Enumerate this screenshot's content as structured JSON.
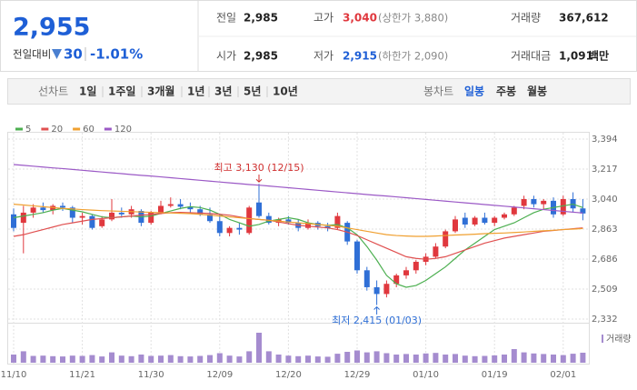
{
  "quote": {
    "price": "2,955",
    "change_label": "전일대비",
    "change": "30",
    "change_pct": "-1.01%",
    "stats": [
      {
        "label": "전일",
        "value": "2,985"
      },
      {
        "label": "고가",
        "value": "3,040",
        "note": "(상한가 3,880)"
      },
      {
        "label": "거래량",
        "value": "367,612"
      },
      {
        "label": "시가",
        "value": "2,985"
      },
      {
        "label": "저가",
        "value": "2,915",
        "note": "(하한가 2,090)"
      },
      {
        "label": "거래대금",
        "value": "1,091",
        "unit": "백만"
      }
    ]
  },
  "toolbar": {
    "line_chart": "선차트",
    "periods": [
      "1일",
      "1주일",
      "3개월",
      "1년",
      "3년",
      "5년",
      "10년"
    ],
    "candle_chart": "봉차트",
    "candle_periods": [
      "일봉",
      "주봉",
      "월봉"
    ]
  },
  "chart_data": {
    "type": "candlestick",
    "up_color": "#e0383e",
    "down_color": "#2f6fd6",
    "categories": [
      "11/10",
      null,
      null,
      null,
      null,
      null,
      null,
      "11/21",
      null,
      null,
      null,
      null,
      null,
      null,
      "11/30",
      null,
      null,
      null,
      null,
      null,
      null,
      "12/09",
      null,
      null,
      null,
      null,
      null,
      null,
      "12/20",
      null,
      null,
      null,
      null,
      null,
      null,
      "12/29",
      null,
      null,
      null,
      null,
      null,
      null,
      "01/10",
      null,
      null,
      null,
      null,
      null,
      null,
      "01/19",
      null,
      null,
      null,
      null,
      null,
      null,
      "02/01",
      null,
      null
    ],
    "open": [
      2950,
      2900,
      2960,
      2990,
      2975,
      3000,
      2990,
      2930,
      2940,
      2880,
      2920,
      2960,
      2950,
      2970,
      2900,
      2960,
      3000,
      3010,
      2995,
      2980,
      2950,
      2910,
      2840,
      2870,
      2840,
      3020,
      2940,
      2900,
      2920,
      2900,
      2870,
      2900,
      2880,
      2870,
      2900,
      2790,
      2620,
      2520,
      2480,
      2540,
      2590,
      2620,
      2670,
      2700,
      2760,
      2850,
      2930,
      2890,
      2930,
      2900,
      2930,
      2950,
      3000,
      3040,
      3010,
      3030,
      2950,
      3040,
      2985
    ],
    "high": [
      2985,
      3000,
      3010,
      3020,
      3010,
      3020,
      3000,
      2960,
      2950,
      2940,
      3040,
      2990,
      3000,
      2980,
      2970,
      3030,
      3050,
      3040,
      3020,
      3000,
      2990,
      2950,
      2880,
      2900,
      3000,
      3130,
      2960,
      2930,
      2940,
      2920,
      2920,
      2910,
      2900,
      2960,
      2910,
      2800,
      2640,
      2560,
      2560,
      2600,
      2640,
      2680,
      2720,
      2780,
      2860,
      2940,
      2960,
      2940,
      2960,
      2940,
      2960,
      3000,
      3060,
      3060,
      3040,
      3050,
      3060,
      3080,
      3040
    ],
    "low": [
      2850,
      2720,
      2930,
      2960,
      2950,
      2970,
      2900,
      2890,
      2860,
      2870,
      2910,
      2930,
      2930,
      2880,
      2890,
      2950,
      2990,
      2980,
      2960,
      2940,
      2900,
      2820,
      2820,
      2830,
      2830,
      2930,
      2890,
      2880,
      2890,
      2850,
      2860,
      2860,
      2850,
      2860,
      2770,
      2600,
      2500,
      2415,
      2460,
      2520,
      2570,
      2600,
      2650,
      2690,
      2750,
      2840,
      2870,
      2880,
      2890,
      2880,
      2920,
      2940,
      2980,
      2990,
      2980,
      2930,
      2940,
      2960,
      2915
    ],
    "close": [
      2870,
      2960,
      2990,
      2975,
      3000,
      2990,
      2930,
      2940,
      2870,
      2920,
      2960,
      2950,
      2980,
      2900,
      2960,
      3000,
      3010,
      2995,
      2980,
      2950,
      2910,
      2840,
      2870,
      2860,
      2990,
      2940,
      2900,
      2920,
      2900,
      2870,
      2900,
      2880,
      2870,
      2940,
      2790,
      2620,
      2520,
      2480,
      2540,
      2590,
      2620,
      2670,
      2700,
      2760,
      2850,
      2920,
      2890,
      2930,
      2900,
      2930,
      2950,
      2990,
      3040,
      3010,
      3030,
      2950,
      3040,
      2985,
      2955
    ],
    "moving_averages": [
      {
        "name": "5",
        "color": "#4caf50",
        "values": [
          2930,
          2940,
          2950,
          2960,
          2975,
          2985,
          2975,
          2965,
          2950,
          2935,
          2930,
          2935,
          2940,
          2935,
          2940,
          2955,
          2970,
          2985,
          2995,
          2990,
          2975,
          2950,
          2920,
          2900,
          2880,
          2890,
          2910,
          2920,
          2930,
          2920,
          2900,
          2890,
          2885,
          2890,
          2870,
          2830,
          2760,
          2680,
          2590,
          2540,
          2520,
          2530,
          2560,
          2600,
          2640,
          2690,
          2740,
          2780,
          2820,
          2860,
          2880,
          2900,
          2930,
          2960,
          2980,
          2990,
          3000,
          3010,
          2990
        ]
      },
      {
        "name": "20",
        "color": "#e05050",
        "values": [
          2820,
          2830,
          2845,
          2860,
          2875,
          2890,
          2900,
          2910,
          2920,
          2925,
          2930,
          2935,
          2940,
          2945,
          2950,
          2955,
          2960,
          2962,
          2960,
          2958,
          2955,
          2950,
          2945,
          2935,
          2925,
          2920,
          2915,
          2905,
          2895,
          2885,
          2880,
          2875,
          2870,
          2860,
          2845,
          2825,
          2800,
          2775,
          2750,
          2725,
          2700,
          2690,
          2685,
          2690,
          2700,
          2720,
          2740,
          2760,
          2780,
          2795,
          2810,
          2820,
          2830,
          2840,
          2850,
          2855,
          2860,
          2865,
          2870
        ]
      },
      {
        "name": "60",
        "color": "#f0a030",
        "values": [
          3010,
          3005,
          3000,
          2995,
          2990,
          2985,
          2982,
          2978,
          2975,
          2972,
          2970,
          2968,
          2966,
          2964,
          2962,
          2960,
          2958,
          2956,
          2954,
          2950,
          2945,
          2940,
          2935,
          2930,
          2925,
          2920,
          2915,
          2910,
          2905,
          2900,
          2895,
          2890,
          2885,
          2880,
          2870,
          2860,
          2850,
          2840,
          2830,
          2825,
          2822,
          2820,
          2820,
          2822,
          2825,
          2828,
          2830,
          2833,
          2836,
          2838,
          2840,
          2843,
          2846,
          2850,
          2853,
          2856,
          2860,
          2863,
          2866
        ]
      },
      {
        "name": "120",
        "color": "#9b59c6",
        "values": [
          3244,
          3239,
          3234,
          3229,
          3224,
          3220,
          3215,
          3210,
          3205,
          3200,
          3195,
          3190,
          3185,
          3180,
          3176,
          3171,
          3166,
          3161,
          3156,
          3151,
          3146,
          3141,
          3136,
          3131,
          3126,
          3122,
          3117,
          3112,
          3107,
          3102,
          3097,
          3092,
          3087,
          3082,
          3077,
          3072,
          3067,
          3062,
          3058,
          3053,
          3048,
          3043,
          3038,
          3033,
          3028,
          3023,
          3018,
          3013,
          3008,
          3003,
          2998,
          2993,
          2988,
          2983,
          2978,
          2973,
          2968,
          2963,
          2958
        ]
      }
    ],
    "volume": {
      "name": "거래량",
      "color": "#a58ccf",
      "values": [
        300000,
        420000,
        250000,
        260000,
        240000,
        230000,
        260000,
        250000,
        280000,
        230000,
        380000,
        260000,
        240000,
        300000,
        250000,
        260000,
        280000,
        240000,
        230000,
        250000,
        280000,
        350000,
        260000,
        230000,
        420000,
        1100000,
        420000,
        300000,
        260000,
        240000,
        260000,
        230000,
        220000,
        330000,
        400000,
        450000,
        380000,
        420000,
        350000,
        300000,
        320000,
        300000,
        340000,
        360000,
        300000,
        320000,
        260000,
        240000,
        250000,
        270000,
        300000,
        500000,
        380000,
        340000,
        320000,
        300000,
        280000,
        330000,
        367612
      ]
    },
    "ylim": [
      2332,
      3394
    ],
    "yticks": [
      {
        "value": 2332,
        "label": "2,332"
      },
      {
        "value": 2509,
        "label": "2,509"
      },
      {
        "value": 2686,
        "label": "2,686"
      },
      {
        "value": 2863,
        "label": "2,863"
      },
      {
        "value": 3040,
        "label": "3,040"
      },
      {
        "value": 3217,
        "label": "3,217"
      },
      {
        "value": 3394,
        "label": "3,394"
      }
    ],
    "grid": true,
    "annotations": [
      {
        "text": "최고 3,130 (12/15)",
        "value": 3130,
        "color": "#d03030"
      },
      {
        "text": "최저 2,415 (01/03)",
        "value": 2415,
        "color": "#2f6fd6"
      }
    ]
  }
}
